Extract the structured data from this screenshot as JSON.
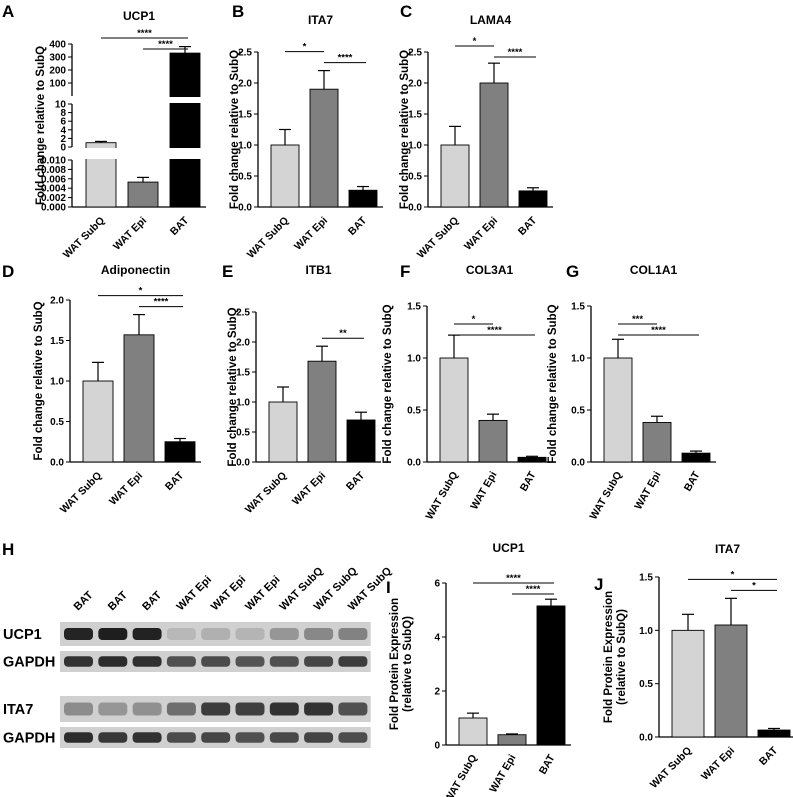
{
  "panel_letters": [
    "A",
    "B",
    "C",
    "D",
    "E",
    "F",
    "G",
    "H",
    "I",
    "J"
  ],
  "colors": {
    "subq": "#d4d4d4",
    "epi": "#808080",
    "bat": "#000000",
    "blot_bg": "#d0d0d0"
  },
  "blot": {
    "lane_labels": [
      "BAT",
      "BAT",
      "BAT",
      "WAT Epi",
      "WAT Epi",
      "WAT Epi",
      "WAT SubQ",
      "WAT SubQ",
      "WAT SubQ"
    ],
    "rows": [
      {
        "label": "UCP1",
        "intensity": [
          0.92,
          0.95,
          0.93,
          0.18,
          0.22,
          0.2,
          0.35,
          0.42,
          0.45
        ]
      },
      {
        "label": "GAPDH",
        "intensity": [
          0.85,
          0.88,
          0.86,
          0.7,
          0.72,
          0.68,
          0.7,
          0.75,
          0.8
        ]
      },
      {
        "label": "ITA7",
        "intensity": [
          0.4,
          0.35,
          0.38,
          0.55,
          0.8,
          0.78,
          0.85,
          0.85,
          0.7
        ]
      },
      {
        "label": "GAPDH",
        "intensity": [
          0.88,
          0.82,
          0.85,
          0.72,
          0.75,
          0.7,
          0.74,
          0.76,
          0.72
        ]
      }
    ]
  },
  "chart_data": [
    {
      "id": "A",
      "type": "bar",
      "title": "UCP1",
      "ylabel": "Fold change relative to SubQ",
      "categories": [
        "WAT SubQ",
        "WAT Epi",
        "BAT"
      ],
      "values": [
        1.0,
        0.0053,
        330
      ],
      "errors": [
        0.3,
        0.001,
        50
      ],
      "broken_axis": true,
      "segments": [
        {
          "range": [
            0,
            0.01
          ],
          "ticks": [
            0,
            0.002,
            0.004,
            0.006,
            0.008,
            0.01
          ],
          "tick_labels": [
            "0.000",
            "0.002",
            "0.004",
            "0.006",
            "0.008",
            "0.010"
          ]
        },
        {
          "range": [
            0,
            10
          ],
          "ticks": [
            0,
            2,
            4,
            6,
            8,
            10
          ],
          "tick_labels": [
            "0",
            "2",
            "4",
            "6",
            "8",
            "10"
          ]
        },
        {
          "range": [
            0,
            400
          ],
          "ticks": [
            100,
            200,
            300,
            400
          ],
          "tick_labels": [
            "100",
            "200",
            "300",
            "400"
          ]
        }
      ],
      "significance": [
        {
          "from": 0,
          "to": 2,
          "label": "****"
        },
        {
          "from": 1,
          "to": 2,
          "label": "****"
        }
      ]
    },
    {
      "id": "B",
      "type": "bar",
      "title": "ITA7",
      "ylabel": "Fold change relative to SubQ",
      "categories": [
        "WAT SubQ",
        "WAT Epi",
        "BAT"
      ],
      "values": [
        1.0,
        1.9,
        0.27
      ],
      "errors": [
        0.25,
        0.3,
        0.06
      ],
      "ylim": [
        0,
        2.5
      ],
      "yticks": [
        0,
        0.5,
        1.0,
        1.5,
        2.0,
        2.5
      ],
      "tick_labels": [
        "0.0",
        "0.5",
        "1.0",
        "1.5",
        "2.0",
        "2.5"
      ],
      "significance": [
        {
          "from": 0,
          "to": 1,
          "label": "*"
        },
        {
          "from": 1,
          "to": 2,
          "label": "****"
        }
      ]
    },
    {
      "id": "C",
      "type": "bar",
      "title": "LAMA4",
      "ylabel": "Fold change relative to SubQ",
      "categories": [
        "WAT SubQ",
        "WAT Epi",
        "BAT"
      ],
      "values": [
        1.0,
        2.0,
        0.26
      ],
      "errors": [
        0.3,
        0.32,
        0.05
      ],
      "ylim": [
        0,
        2.5
      ],
      "yticks": [
        0,
        0.5,
        1.0,
        1.5,
        2.0,
        2.5
      ],
      "tick_labels": [
        "0.0",
        "0.5",
        "1.0",
        "1.5",
        "2.0",
        "2.5"
      ],
      "significance": [
        {
          "from": 0,
          "to": 1,
          "label": "*"
        },
        {
          "from": 1,
          "to": 2,
          "label": "****"
        }
      ]
    },
    {
      "id": "D",
      "type": "bar",
      "title": "Adiponectin",
      "ylabel": "Fold change relative to SubQ",
      "categories": [
        "WAT SubQ",
        "WAT Epi",
        "BAT"
      ],
      "values": [
        1.0,
        1.57,
        0.25
      ],
      "errors": [
        0.23,
        0.25,
        0.04
      ],
      "ylim": [
        0,
        2.0
      ],
      "yticks": [
        0,
        0.5,
        1.0,
        1.5,
        2.0
      ],
      "tick_labels": [
        "0.0",
        "0.5",
        "1.0",
        "1.5",
        "2.0"
      ],
      "significance": [
        {
          "from": 0,
          "to": 2,
          "label": "*"
        },
        {
          "from": 1,
          "to": 2,
          "label": "****"
        }
      ]
    },
    {
      "id": "E",
      "type": "bar",
      "title": "ITB1",
      "ylabel": "Fold change relative to SubQ",
      "categories": [
        "WAT SubQ",
        "WAT Epi",
        "BAT"
      ],
      "values": [
        1.0,
        1.68,
        0.7
      ],
      "errors": [
        0.25,
        0.25,
        0.13
      ],
      "ylim": [
        0,
        2.5
      ],
      "yticks": [
        0,
        0.5,
        1.0,
        1.5,
        2.0,
        2.5
      ],
      "tick_labels": [
        "0.0",
        "0.5",
        "1.0",
        "1.5",
        "2.0",
        "2.5"
      ],
      "significance": [
        {
          "from": 1,
          "to": 2,
          "label": "**"
        }
      ]
    },
    {
      "id": "F",
      "type": "bar",
      "title": "COL3A1",
      "ylabel": "Fold change relative to SubQ",
      "categories": [
        "WAT SubQ",
        "WAT Epi",
        "BAT"
      ],
      "values": [
        1.0,
        0.4,
        0.045
      ],
      "errors": [
        0.22,
        0.06,
        0.01
      ],
      "ylim": [
        0,
        1.5
      ],
      "yticks": [
        0,
        0.5,
        1.0,
        1.5
      ],
      "tick_labels": [
        "0.0",
        "0.5",
        "1.0",
        "1.5"
      ],
      "significance": [
        {
          "from": 0,
          "to": 1,
          "label": "*"
        },
        {
          "from": 0,
          "to": 2,
          "label": "****"
        }
      ]
    },
    {
      "id": "G",
      "type": "bar",
      "title": "COL1A1",
      "ylabel": "Fold change relative to SubQ",
      "categories": [
        "WAT SubQ",
        "WAT Epi",
        "BAT"
      ],
      "values": [
        1.0,
        0.38,
        0.085
      ],
      "errors": [
        0.18,
        0.06,
        0.02
      ],
      "ylim": [
        0,
        1.5
      ],
      "yticks": [
        0,
        0.5,
        1.0,
        1.5
      ],
      "tick_labels": [
        "0.0",
        "0.5",
        "1.0",
        "1.5"
      ],
      "significance": [
        {
          "from": 0,
          "to": 1,
          "label": "***"
        },
        {
          "from": 0,
          "to": 2,
          "label": "****"
        }
      ]
    },
    {
      "id": "I",
      "type": "bar",
      "title": "UCP1",
      "ylabel": "Fold Protein Expression (relative to SubQ)",
      "categories": [
        "WAT SubQ",
        "WAT Epi",
        "BAT"
      ],
      "values": [
        1.0,
        0.38,
        5.15
      ],
      "errors": [
        0.18,
        0.03,
        0.25
      ],
      "ylim": [
        0,
        6
      ],
      "yticks": [
        0,
        2,
        4,
        6
      ],
      "tick_labels": [
        "0",
        "2",
        "4",
        "6"
      ],
      "significance": [
        {
          "from": 0,
          "to": 2,
          "label": "****"
        },
        {
          "from": 1,
          "to": 2,
          "label": "****"
        }
      ]
    },
    {
      "id": "J",
      "type": "bar",
      "title": "ITA7",
      "ylabel": "Fold Protein Expression (relative to SubQ)",
      "categories": [
        "WAT SubQ",
        "WAT Epi",
        "BAT"
      ],
      "values": [
        1.0,
        1.05,
        0.065
      ],
      "errors": [
        0.15,
        0.25,
        0.015
      ],
      "ylim": [
        0,
        1.5
      ],
      "yticks": [
        0,
        0.5,
        1.0,
        1.5
      ],
      "tick_labels": [
        "0.0",
        "0.5",
        "1.0",
        "1.5"
      ],
      "significance": [
        {
          "from": 0,
          "to": 2,
          "label": "*"
        },
        {
          "from": 1,
          "to": 2,
          "label": "*"
        }
      ]
    }
  ]
}
